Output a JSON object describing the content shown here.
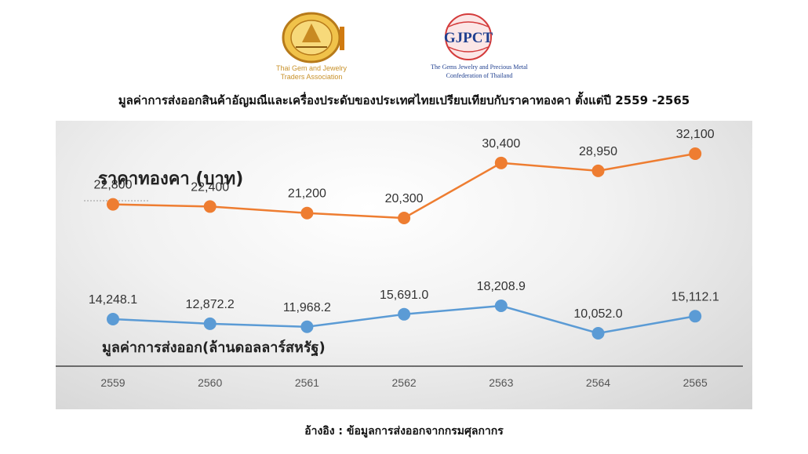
{
  "header": {
    "logo_left": {
      "line1": "Thai Gem and Jewelry",
      "line2": "Traders Association",
      "color": "#c8912a"
    },
    "logo_right": {
      "mark": "GJPCT",
      "line1": "The Gems Jewelry and Precious Metal",
      "line2": "Confederation of Thailand",
      "color": "#1f3f8f"
    }
  },
  "title": "มูลค่าการส่งออกสินค้าอัญมณีและเครื่องประดับของประเทศไทยเปรียบเทียบกับราคาทองคา ตั้งแต่ปี 2559 -2565",
  "source": "อ้างอิง : ข้อมูลการส่งออกจากกรมศุลกากร",
  "chart_data": {
    "type": "line",
    "categories": [
      "2559",
      "2560",
      "2561",
      "2562",
      "2563",
      "2564",
      "2565"
    ],
    "series": [
      {
        "name": "ราคาทองคา (บาท)",
        "color": "#ee7d31",
        "values": [
          22800,
          22400,
          21200,
          20300,
          30400,
          28950,
          32100
        ],
        "labels": [
          "22,800",
          "22,400",
          "21,200",
          "20,300",
          "30,400",
          "28,950",
          "32,100"
        ]
      },
      {
        "name": "มูลค่าการส่งออก(ล้านดอลลาร์สหรัฐ)",
        "color": "#5b9bd5",
        "values": [
          14248.1,
          12872.2,
          11968.2,
          15691.0,
          18208.9,
          10052.0,
          15112.1
        ],
        "labels": [
          "14,248.1",
          "12,872.2",
          "11,968.2",
          "15,691.0",
          "18,208.9",
          "10,052.0",
          "15,112.1"
        ]
      }
    ],
    "grid": false,
    "legend": "none"
  }
}
